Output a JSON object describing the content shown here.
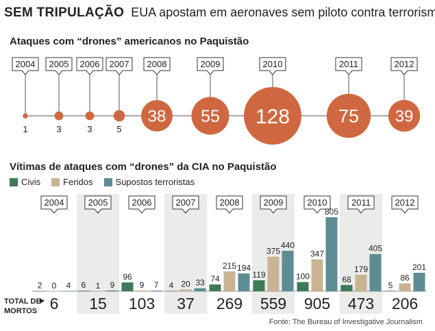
{
  "headline": {
    "kicker": "SEM TRIPULAÇÃO",
    "title": "EUA apostam em aeronaves sem piloto contra terrorismo"
  },
  "section1": {
    "title": "Ataques com “drones” americanos no Paquistão"
  },
  "section2": {
    "title": "Vítimas de ataques com “drones” da CIA no Paquistão"
  },
  "colors": {
    "bubble": "#cf6840",
    "civis": "#3d7a58",
    "feridos": "#c8b393",
    "terroristas": "#5d8c93",
    "shade": "#ebebea"
  },
  "total_label": [
    "TOTAL DE",
    "MORTOS"
  ],
  "source": "Fonte: The Bureau of Investigative Journalism",
  "chart_data": [
    {
      "type": "scatter",
      "title": "Ataques com “drones” americanos no Paquistão",
      "x": [
        "2004",
        "2005",
        "2006",
        "2007",
        "2008",
        "2009",
        "2010",
        "2011",
        "2012"
      ],
      "values": [
        1,
        3,
        3,
        5,
        38,
        55,
        128,
        75,
        39
      ]
    },
    {
      "type": "bar",
      "title": "Vítimas de ataques com “drones” da CIA no Paquistão",
      "categories": [
        "2004",
        "2005",
        "2006",
        "2007",
        "2008",
        "2009",
        "2010",
        "2011",
        "2012"
      ],
      "series": [
        {
          "name": "Civis",
          "values": [
            2,
            6,
            96,
            4,
            74,
            119,
            100,
            68,
            5
          ]
        },
        {
          "name": "Feridos",
          "values": [
            0,
            1,
            9,
            20,
            215,
            375,
            347,
            179,
            86
          ]
        },
        {
          "name": "Supostos terroristas",
          "values": [
            4,
            9,
            7,
            33,
            194,
            440,
            805,
            405,
            201
          ]
        }
      ],
      "totals": [
        6,
        15,
        103,
        37,
        269,
        559,
        905,
        473,
        206
      ],
      "ylim": [
        0,
        805
      ]
    }
  ]
}
